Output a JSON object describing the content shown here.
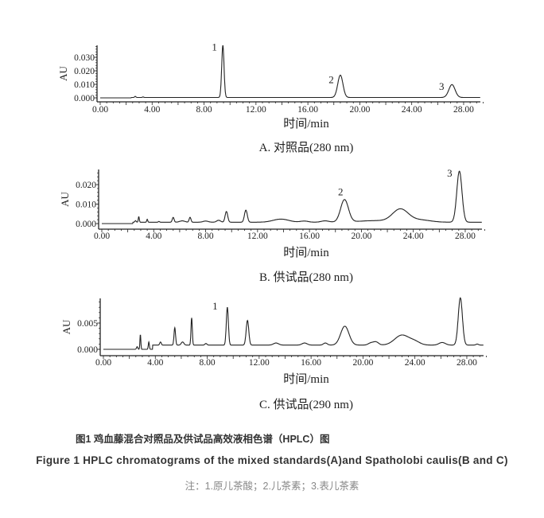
{
  "figure": {
    "title_cn": "图1 鸡血藤混合对照品及供试品高效液相色谱（HPLC）图",
    "title_en": "Figure 1 HPLC chromatograms of the mixed standards(A)and Spatholobi caulis(B and C)",
    "note": "注：1.原儿茶酸；2.儿茶素；3.表儿茶素"
  },
  "chart_data": [
    {
      "type": "line",
      "panel": "A",
      "caption": "A. 对照品(280 nm)",
      "xlabel": "时间/min",
      "ylabel": "AU",
      "xlim": [
        0,
        29.6
      ],
      "ylim": [
        -0.001,
        0.039
      ],
      "xticks": [
        "0.00",
        "4.00",
        "8.00",
        "12.00",
        "16.00",
        "20.00",
        "24.00",
        "28.00"
      ],
      "yticks": [
        "0.000",
        "0.010",
        "0.020",
        "0.030"
      ],
      "grid": false,
      "color": "#222222",
      "baseline": 0.0003,
      "peaks": [
        {
          "rt": 2.7,
          "height": 0.0008,
          "sigma": 0.05
        },
        {
          "rt": 3.3,
          "height": 0.0004,
          "sigma": 0.05
        },
        {
          "rt": 9.45,
          "height": 0.0385,
          "sigma": 0.09
        },
        {
          "rt": 18.5,
          "height": 0.0165,
          "sigma": 0.2
        },
        {
          "rt": 27.1,
          "height": 0.0095,
          "sigma": 0.24
        }
      ],
      "annotations": [
        {
          "text": "1",
          "x": 8.8,
          "y": 0.035
        },
        {
          "text": "2",
          "x": 17.8,
          "y": 0.011
        },
        {
          "text": "3",
          "x": 26.3,
          "y": 0.006
        }
      ]
    },
    {
      "type": "line",
      "panel": "B",
      "caption": "B. 供试品(280 nm)",
      "xlabel": "时间/min",
      "ylabel": "AU",
      "xlim": [
        0,
        29.6
      ],
      "ylim": [
        -0.001,
        0.027
      ],
      "xticks": [
        "0.00",
        "4.00",
        "8.00",
        "12.00",
        "16.00",
        "20.00",
        "24.00",
        "28.00"
      ],
      "yticks": [
        "0.000",
        "0.010",
        "0.020"
      ],
      "grid": false,
      "color": "#222222",
      "baseline": 0.0007,
      "peaks": [
        {
          "rt": 2.6,
          "height": 0.0008,
          "sigma": 0.05
        },
        {
          "rt": 2.85,
          "height": 0.0028,
          "sigma": 0.04
        },
        {
          "rt": 3.5,
          "height": 0.0015,
          "sigma": 0.04
        },
        {
          "rt": 4.4,
          "height": 0.0004,
          "sigma": 0.05
        },
        {
          "rt": 5.5,
          "height": 0.0025,
          "sigma": 0.07
        },
        {
          "rt": 6.2,
          "height": 0.0007,
          "sigma": 0.2
        },
        {
          "rt": 6.8,
          "height": 0.0025,
          "sigma": 0.07
        },
        {
          "rt": 8.0,
          "height": 0.0006,
          "sigma": 0.2
        },
        {
          "rt": 9.0,
          "height": 0.001,
          "sigma": 0.15
        },
        {
          "rt": 9.6,
          "height": 0.0055,
          "sigma": 0.1
        },
        {
          "rt": 11.1,
          "height": 0.0062,
          "sigma": 0.11
        },
        {
          "rt": 13.8,
          "height": 0.0016,
          "sigma": 0.6
        },
        {
          "rt": 15.6,
          "height": 0.0006,
          "sigma": 0.3
        },
        {
          "rt": 17.2,
          "height": 0.0007,
          "sigma": 0.3
        },
        {
          "rt": 18.7,
          "height": 0.0115,
          "sigma": 0.3
        },
        {
          "rt": 21.0,
          "height": 0.0008,
          "sigma": 1.2
        },
        {
          "rt": 23.0,
          "height": 0.0065,
          "sigma": 0.6
        },
        {
          "rt": 24.5,
          "height": 0.0012,
          "sigma": 0.8
        },
        {
          "rt": 27.55,
          "height": 0.0262,
          "sigma": 0.2
        }
      ],
      "annotations": [
        {
          "text": "2",
          "x": 18.4,
          "y": 0.0145
        },
        {
          "text": "3",
          "x": 26.8,
          "y": 0.024
        }
      ]
    },
    {
      "type": "line",
      "panel": "C",
      "caption": "C. 供试品(290 nm)",
      "xlabel": "时间/min",
      "ylabel": "AU",
      "xlim": [
        0,
        29.6
      ],
      "ylim": [
        -0.0003,
        0.0097
      ],
      "xticks": [
        "0.00",
        "4.00",
        "8.00",
        "12.00",
        "16.00",
        "20.00",
        "24.00",
        "28.00"
      ],
      "yticks": [
        "0.000",
        "0.005"
      ],
      "grid": false,
      "color": "#222222",
      "baseline": 0.0,
      "peaks": [
        {
          "rt": 2.6,
          "height": 0.0005,
          "sigma": 0.05
        },
        {
          "rt": 2.85,
          "height": 0.0028,
          "sigma": 0.035
        },
        {
          "rt": 3.5,
          "height": 0.0014,
          "sigma": 0.04
        },
        {
          "rt": 4.4,
          "height": 0.0006,
          "sigma": 0.06
        },
        {
          "rt": 5.5,
          "height": 0.0033,
          "sigma": 0.06
        },
        {
          "rt": 6.1,
          "height": 0.0006,
          "sigma": 0.1
        },
        {
          "rt": 6.8,
          "height": 0.0052,
          "sigma": 0.05
        },
        {
          "rt": 7.9,
          "height": 0.0003,
          "sigma": 0.08
        },
        {
          "rt": 9.55,
          "height": 0.0072,
          "sigma": 0.08
        },
        {
          "rt": 11.1,
          "height": 0.0047,
          "sigma": 0.1
        },
        {
          "rt": 13.3,
          "height": 0.0004,
          "sigma": 0.2
        },
        {
          "rt": 15.5,
          "height": 0.0004,
          "sigma": 0.2
        },
        {
          "rt": 17.1,
          "height": 0.0004,
          "sigma": 0.15
        },
        {
          "rt": 18.6,
          "height": 0.0036,
          "sigma": 0.32
        },
        {
          "rt": 20.6,
          "height": 0.0004,
          "sigma": 0.2
        },
        {
          "rt": 21.0,
          "height": 0.0006,
          "sigma": 0.2
        },
        {
          "rt": 23.0,
          "height": 0.0019,
          "sigma": 0.55
        },
        {
          "rt": 24.0,
          "height": 0.0006,
          "sigma": 0.4
        },
        {
          "rt": 26.1,
          "height": 0.0005,
          "sigma": 0.25
        },
        {
          "rt": 27.5,
          "height": 0.009,
          "sigma": 0.16
        },
        {
          "rt": 28.8,
          "height": 0.0002,
          "sigma": 0.1
        }
      ],
      "baseline_shift": {
        "from": 3.8,
        "value": 0.0008
      },
      "annotations": [
        {
          "text": "1",
          "x": 8.6,
          "y": 0.0076
        }
      ]
    }
  ]
}
